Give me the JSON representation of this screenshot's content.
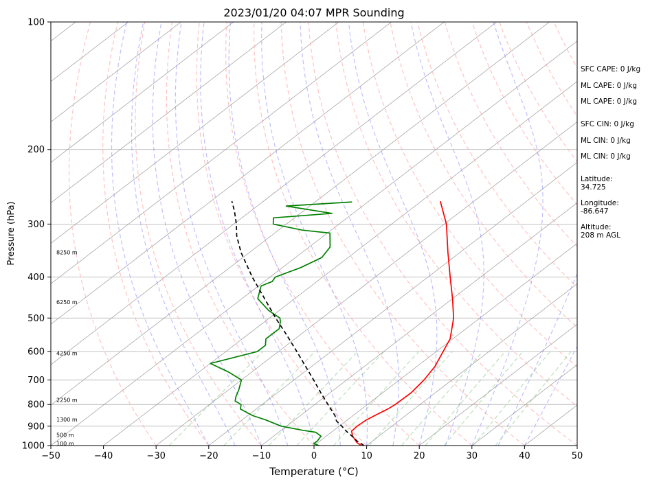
{
  "chart_data": {
    "type": "line",
    "subtype": "skew-t log-p sounding",
    "title": "2023/01/20 04:07 MPR Sounding",
    "xlabel": "Temperature (°C)",
    "ylabel": "Pressure (hPa)",
    "xlim": [
      -50,
      50
    ],
    "ylim": [
      1000,
      100
    ],
    "y_scale": "log",
    "x_ticks": [
      "−50",
      "−40",
      "−30",
      "−20",
      "−10",
      "0",
      "10",
      "20",
      "30",
      "40",
      "50"
    ],
    "y_ticks": [
      100,
      200,
      300,
      400,
      500,
      600,
      700,
      800,
      900,
      1000
    ],
    "grid": "horizontal at labeled pressures",
    "colors": {
      "temperature": "#ff0000",
      "dewpoint": "#008000",
      "parcel": "#000000",
      "dry_adiabats": "#ff9999",
      "moist_adiabats": "#7f7fff",
      "mixing_ratio": "#66bb66",
      "isotherms": "#999999"
    },
    "series": [
      {
        "name": "",
        "role": "temperature",
        "p": [
          1000,
          985,
          950,
          925,
          900,
          870,
          850,
          820,
          800,
          750,
          700,
          650,
          600,
          560,
          500,
          450,
          400,
          350,
          300,
          265
        ],
        "values": [
          9.0,
          7.5,
          5.0,
          3.6,
          3.4,
          3.6,
          4.1,
          5.0,
          5.3,
          5.4,
          4.7,
          3.4,
          1.3,
          -0.5,
          -5.0,
          -10.0,
          -15.8,
          -22.3,
          -29.6,
          -36.4
        ]
      },
      {
        "name": "",
        "role": "dewpoint",
        "p": [
          1000,
          990,
          975,
          950,
          930,
          920,
          900,
          870,
          850,
          835,
          820,
          800,
          785,
          765,
          740,
          700,
          670,
          640,
          600,
          580,
          560,
          530,
          510,
          500,
          480,
          450,
          420,
          410,
          400,
          380,
          360,
          340,
          315,
          310,
          300,
          290,
          283,
          272,
          266
        ],
        "values": [
          1.0,
          -0.5,
          -0.5,
          -1.0,
          -3.0,
          -6.0,
          -11.0,
          -15.5,
          -19.0,
          -21.0,
          -23.0,
          -24.0,
          -26.0,
          -27.0,
          -28.0,
          -30.0,
          -34.5,
          -40.0,
          -34.0,
          -34.0,
          -35.5,
          -35.5,
          -37.0,
          -38.0,
          -42.0,
          -47.0,
          -49.5,
          -48.5,
          -49.0,
          -46.5,
          -45.0,
          -46.0,
          -49.5,
          -55.5,
          -62.5,
          -64.0,
          -54.0,
          -64.5,
          -53.0
        ]
      },
      {
        "name": "",
        "role": "parcel",
        "p": [
          1000,
          975,
          950,
          925,
          900,
          875,
          850,
          800,
          750,
          700,
          650,
          600,
          550,
          500,
          450,
          400,
          350,
          320,
          300,
          280,
          265
        ],
        "values": [
          9.5,
          7.0,
          4.9,
          2.6,
          0.5,
          -1.8,
          -3.4,
          -7.5,
          -11.8,
          -16.3,
          -21.2,
          -26.5,
          -32.3,
          -38.8,
          -45.7,
          -53.4,
          -61.6,
          -66.5,
          -69.5,
          -73.0,
          -76.0
        ]
      }
    ],
    "annotations": {
      "heights": [
        "100 m",
        "500 m",
        "1300 m",
        "2250 m",
        "4250 m",
        "6250 m",
        "8250 m"
      ],
      "height_pressures": [
        988,
        943,
        868,
        780,
        605,
        458,
        350
      ],
      "indices": [
        "SFC CAPE: 0 J/kg",
        "ML CAPE: 0 J/kg",
        "ML CAPE: 0 J/kg",
        "SFC CIN: 0 J/kg",
        "ML CIN: 0 J/kg",
        "ML CIN: 0 J/kg"
      ],
      "latitude_label": "Latitude:",
      "latitude_value": "34.725",
      "longitude_label": "Longitude:",
      "longitude_value": "-86.647",
      "altitude_label": "Altitude:",
      "altitude_value": "208 m AGL"
    }
  }
}
